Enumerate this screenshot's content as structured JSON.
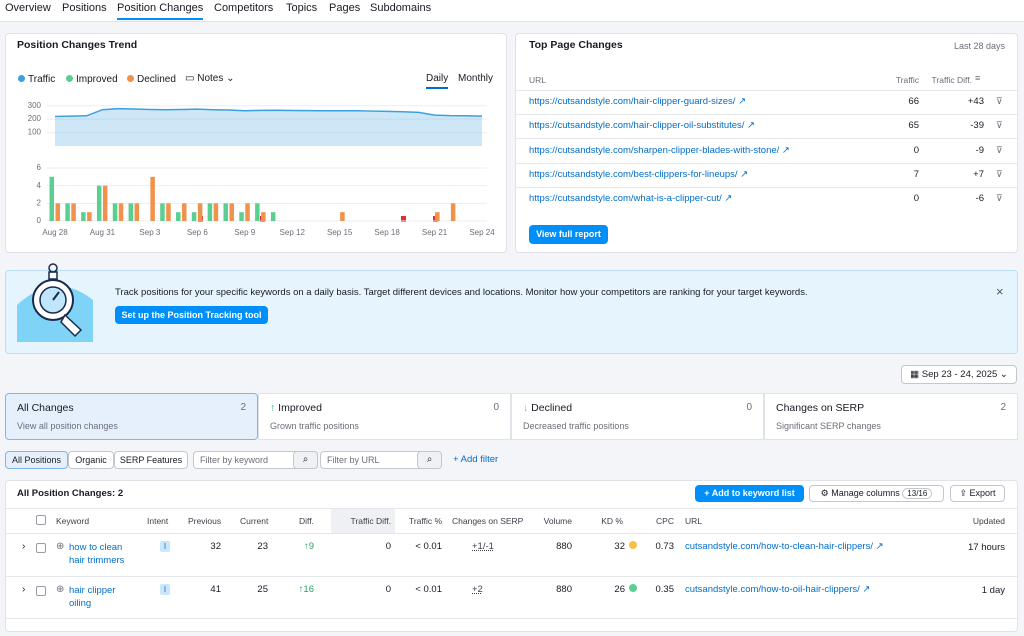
{
  "tabs": [
    "Overview",
    "Positions",
    "Position Changes",
    "Competitors",
    "Topics",
    "Pages",
    "Subdomains"
  ],
  "trend": {
    "title": "Position Changes Trend",
    "notes": "Notes",
    "toggles": [
      "Daily",
      "Monthly"
    ],
    "chart_data": [
      {
        "type": "line",
        "categories": [
          "Aug 28",
          null,
          null,
          "Aug 31",
          null,
          null,
          "Sep 3",
          null,
          null,
          "Sep 6",
          null,
          null,
          "Sep 9",
          null,
          null,
          "Sep 12",
          null,
          null,
          "Sep 15",
          null,
          null,
          "Sep 18",
          null,
          null,
          "Sep 21",
          null,
          null,
          "Sep 24"
        ],
        "series": [
          {
            "name": "Traffic",
            "color": "#3aa0e0",
            "values": [
              220,
              222,
              225,
              270,
              278,
              275,
              272,
              270,
              272,
              274,
              270,
              268,
              262,
              265,
              266,
              264,
              263,
              262,
              262,
              262,
              260,
              258,
              255,
              250,
              230,
              226,
              225,
              222
            ]
          }
        ],
        "ylim": [
          0,
          320
        ],
        "yticks": [
          100,
          200,
          300
        ],
        "grid": true
      },
      {
        "type": "bar",
        "categories": [
          "Aug 28",
          null,
          null,
          "Aug 31",
          null,
          null,
          "Sep 3",
          null,
          null,
          "Sep 6",
          null,
          null,
          "Sep 9",
          null,
          null,
          "Sep 12",
          null,
          null,
          "Sep 15",
          null,
          null,
          "Sep 18",
          null,
          null,
          "Sep 21",
          null,
          null,
          "Sep 24"
        ],
        "series": [
          {
            "name": "Improved",
            "color": "#59d08f",
            "values": [
              5,
              2,
              1,
              4,
              2,
              2,
              0,
              2,
              1,
              1,
              2,
              2,
              1,
              2,
              1,
              0,
              0,
              0,
              0,
              0,
              0,
              0,
              0,
              0,
              0,
              0,
              0,
              0
            ]
          },
          {
            "name": "Declined",
            "color": "#f0924b",
            "values": [
              2,
              2,
              1,
              4,
              2,
              2,
              5,
              2,
              2,
              2,
              2,
              2,
              2,
              1,
              0,
              0,
              0,
              0,
              1,
              0,
              0,
              0,
              0,
              0,
              1,
              2,
              0,
              0
            ]
          }
        ],
        "ylim": [
          0,
          6
        ],
        "yticks": [
          0,
          2,
          4,
          6
        ],
        "grid": true
      }
    ]
  },
  "top_pages": {
    "title": "Top Page Changes",
    "period": "Last 28 days",
    "columns": [
      "URL",
      "Traffic",
      "Traffic Diff."
    ],
    "rows": [
      [
        "https://cutsandstyle.com/hair-clipper-guard-sizes/",
        66,
        "+43"
      ],
      [
        "https://cutsandstyle.com/hair-clipper-oil-substitutes/",
        65,
        "-39"
      ],
      [
        "https://cutsandstyle.com/sharpen-clipper-blades-with-stone/",
        0,
        "-9"
      ],
      [
        "https://cutsandstyle.com/best-clippers-for-lineups/",
        7,
        "+7"
      ],
      [
        "https://cutsandstyle.com/what-is-a-clipper-cut/",
        0,
        "-6"
      ]
    ],
    "button": "View full report"
  },
  "banner": {
    "text": "Track positions for your specific keywords on a daily basis. Target different devices and locations. Monitor how your competitors are ranking for your target keywords.",
    "button": "Set up the Position Tracking tool"
  },
  "date_range": "Sep 23 - 24, 2025",
  "summary_cards": [
    {
      "title": "All Changes",
      "count": 2,
      "subtitle": "View all position changes"
    },
    {
      "title": "Improved",
      "count": 0,
      "subtitle": "Grown traffic positions"
    },
    {
      "title": "Declined",
      "count": 0,
      "subtitle": "Decreased traffic positions"
    },
    {
      "title": "Changes on SERP",
      "count": 2,
      "subtitle": "Significant SERP changes"
    }
  ],
  "filters": {
    "tabs": [
      "All Positions",
      "Organic",
      "SERP Features"
    ],
    "keyword": "Filter by keyword",
    "url": "Filter by URL",
    "add": "Add filter"
  },
  "positions": {
    "title": "All Position Changes:",
    "total": 2,
    "add": "Add to keyword list",
    "manage": "Manage columns",
    "manage_count": "13/16",
    "export": "Export",
    "columns": [
      "Keyword",
      "Intent",
      "Previous",
      "Current",
      "Diff.",
      "Traffic Diff.",
      "Traffic %",
      "Changes on SERP",
      "Volume",
      "KD %",
      "CPC",
      "URL",
      "Updated"
    ],
    "rows": [
      [
        "how to clean hair trimmers",
        "I",
        32,
        23,
        9,
        0,
        "< 0.01",
        "+1/-1",
        880,
        32,
        0.73,
        "cutsandstyle.com/how-to-clean-hair-clippers/",
        "17 hours"
      ],
      [
        "hair clipper oiling",
        "I",
        41,
        25,
        16,
        0,
        "< 0.01",
        "+2",
        880,
        26,
        0.35,
        "cutsandstyle.com/how-to-oil-hair-clippers/",
        "1 day"
      ]
    ]
  }
}
